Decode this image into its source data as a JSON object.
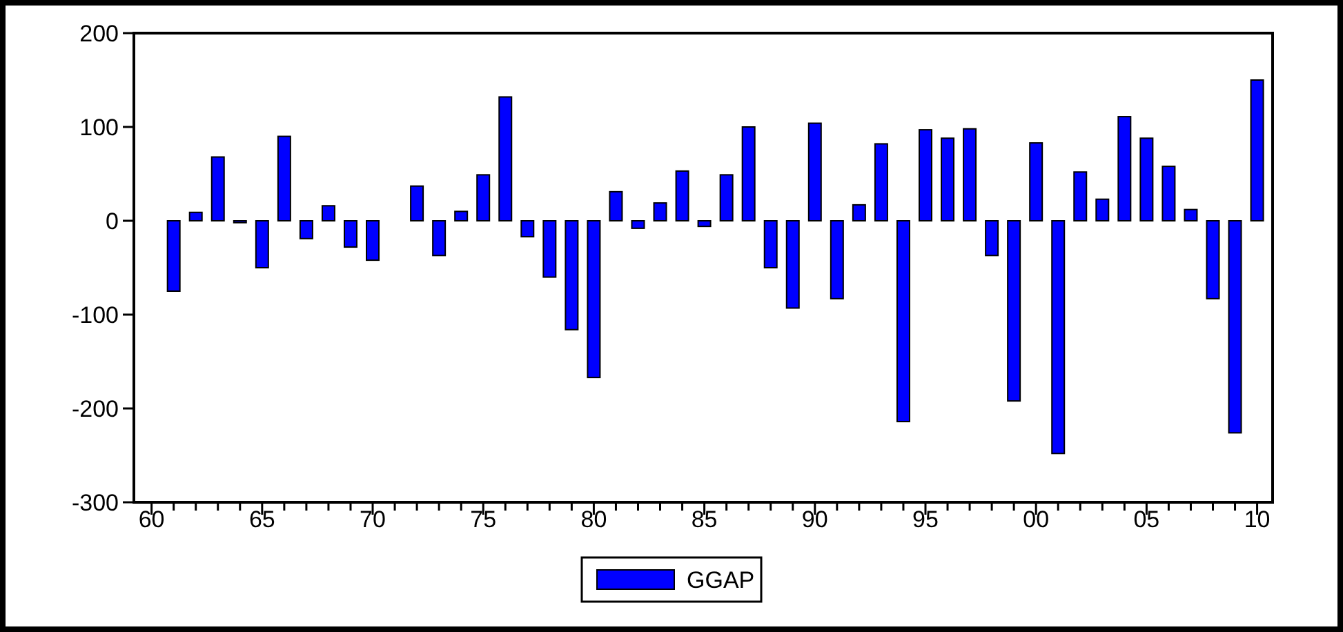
{
  "chart_data": {
    "type": "bar",
    "x": [
      1961,
      1962,
      1963,
      1964,
      1965,
      1966,
      1967,
      1968,
      1969,
      1970,
      1972,
      1973,
      1974,
      1975,
      1976,
      1977,
      1978,
      1979,
      1980,
      1981,
      1982,
      1983,
      1984,
      1985,
      1986,
      1987,
      1988,
      1989,
      1990,
      1991,
      1992,
      1993,
      1994,
      1995,
      1996,
      1997,
      1998,
      1999,
      2000,
      2001,
      2002,
      2003,
      2004,
      2005,
      2006,
      2007,
      2008,
      2009,
      2010
    ],
    "series": [
      {
        "name": "GGAP",
        "color": "#0000ff",
        "values": [
          -75,
          9,
          68,
          -2,
          -50,
          90,
          -19,
          16,
          -28,
          -42,
          37,
          -37,
          10,
          49,
          132,
          -17,
          -60,
          -116,
          -167,
          31,
          -8,
          19,
          53,
          -6,
          49,
          100,
          -50,
          -93,
          104,
          -83,
          17,
          82,
          -214,
          97,
          88,
          98,
          -37,
          -192,
          83,
          -248,
          52,
          23,
          111,
          88,
          58,
          12,
          -83,
          -226,
          150
        ]
      }
    ],
    "xlim": [
      1959.2,
      2010.7
    ],
    "xticks": [
      {
        "value": 1960,
        "label": "60"
      },
      {
        "value": 1961,
        "label": null
      },
      {
        "value": 1962,
        "label": null
      },
      {
        "value": 1963,
        "label": null
      },
      {
        "value": 1964,
        "label": null
      },
      {
        "value": 1965,
        "label": "65"
      },
      {
        "value": 1966,
        "label": null
      },
      {
        "value": 1967,
        "label": null
      },
      {
        "value": 1968,
        "label": null
      },
      {
        "value": 1969,
        "label": null
      },
      {
        "value": 1970,
        "label": "70"
      },
      {
        "value": 1971,
        "label": null
      },
      {
        "value": 1972,
        "label": null
      },
      {
        "value": 1973,
        "label": null
      },
      {
        "value": 1974,
        "label": null
      },
      {
        "value": 1975,
        "label": "75"
      },
      {
        "value": 1976,
        "label": null
      },
      {
        "value": 1977,
        "label": null
      },
      {
        "value": 1978,
        "label": null
      },
      {
        "value": 1979,
        "label": null
      },
      {
        "value": 1980,
        "label": "80"
      },
      {
        "value": 1981,
        "label": null
      },
      {
        "value": 1982,
        "label": null
      },
      {
        "value": 1983,
        "label": null
      },
      {
        "value": 1984,
        "label": null
      },
      {
        "value": 1985,
        "label": "85"
      },
      {
        "value": 1986,
        "label": null
      },
      {
        "value": 1987,
        "label": null
      },
      {
        "value": 1988,
        "label": null
      },
      {
        "value": 1989,
        "label": null
      },
      {
        "value": 1990,
        "label": "90"
      },
      {
        "value": 1991,
        "label": null
      },
      {
        "value": 1992,
        "label": null
      },
      {
        "value": 1993,
        "label": null
      },
      {
        "value": 1994,
        "label": null
      },
      {
        "value": 1995,
        "label": "95"
      },
      {
        "value": 1996,
        "label": null
      },
      {
        "value": 1997,
        "label": null
      },
      {
        "value": 1998,
        "label": null
      },
      {
        "value": 1999,
        "label": null
      },
      {
        "value": 2000,
        "label": "00"
      },
      {
        "value": 2001,
        "label": null
      },
      {
        "value": 2002,
        "label": null
      },
      {
        "value": 2003,
        "label": null
      },
      {
        "value": 2004,
        "label": null
      },
      {
        "value": 2005,
        "label": "05"
      },
      {
        "value": 2006,
        "label": null
      },
      {
        "value": 2007,
        "label": null
      },
      {
        "value": 2008,
        "label": null
      },
      {
        "value": 2009,
        "label": null
      },
      {
        "value": 2010,
        "label": "10"
      }
    ],
    "ylim": [
      -300,
      200
    ],
    "yticks": [
      200,
      100,
      0,
      -100,
      -200,
      -300
    ],
    "grid": false,
    "legend": "bottom"
  }
}
